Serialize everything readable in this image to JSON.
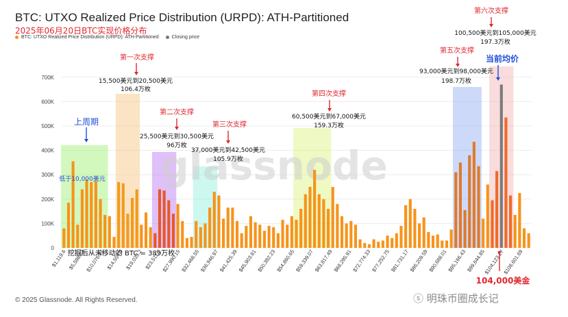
{
  "header": {
    "title": "BTC: UTXO Realized Price Distribution (URPD): ATH-Partitioned",
    "subtitle": "2025年06月20日BTC实现价格分布",
    "legend": [
      {
        "label": "BTC: UTXO Realized Price Distribution (URPD): ATH-Partitioned",
        "color": "#f7931a"
      },
      {
        "label": "Closing price",
        "color": "#777777"
      }
    ]
  },
  "footer": {
    "copyright": "© 2025 Glassnode. All Rights Reserved.",
    "credit": "明珠币圈成长记"
  },
  "watermark": "glassnode",
  "chart_data": {
    "type": "bar",
    "y_ticks": [
      "0",
      "100K",
      "200K",
      "300K",
      "400K",
      "500K",
      "600K",
      "700K"
    ],
    "ylim": [
      0,
      750000
    ],
    "x_tick_labels": [
      "$1,119.6",
      "$5,598.03",
      "$10,076.47",
      "$14,554.9",
      "$19,033.2",
      "$23,511.7",
      "$27,990.15",
      "$32,468.55",
      "$36,946.97",
      "$41,425.39",
      "$45,903.81",
      "$50,382.23",
      "$54,860.65",
      "$59,339.07",
      "$63,817.49",
      "$68,295.91",
      "$72,774.33",
      "$77,252.75",
      "$81,731.17",
      "$86,209.59",
      "$90,688.01",
      "$95,166.43",
      "$99,644.85",
      "$104,123.27",
      "$108,601.69"
    ],
    "values": [
      80000,
      185000,
      355000,
      95000,
      240000,
      280000,
      270000,
      275000,
      200000,
      135000,
      130000,
      45000,
      270000,
      265000,
      140000,
      205000,
      240000,
      95000,
      145000,
      85000,
      60000,
      240000,
      235000,
      195000,
      140000,
      180000,
      110000,
      40000,
      45000,
      110000,
      85000,
      100000,
      165000,
      230000,
      215000,
      120000,
      165000,
      165000,
      110000,
      60000,
      90000,
      130000,
      105000,
      95000,
      70000,
      90000,
      85000,
      60000,
      115000,
      95000,
      130000,
      115000,
      160000,
      220000,
      250000,
      320000,
      220000,
      200000,
      160000,
      250000,
      180000,
      130000,
      100000,
      110000,
      95000,
      35000,
      20000,
      15000,
      35000,
      25000,
      30000,
      50000,
      40000,
      60000,
      90000,
      175000,
      200000,
      160000,
      100000,
      125000,
      65000,
      50000,
      55000,
      30000,
      30000,
      75000,
      310000,
      350000,
      155000,
      380000,
      435000,
      335000,
      120000,
      260000,
      195000,
      315000,
      670000,
      535000,
      215000,
      135000,
      225000,
      80000,
      60000
    ],
    "closing_price_index": 96,
    "series": [
      {
        "name": "BTC: UTXO Realized Price Distribution (URPD): ATH-Partitioned",
        "color": "#f7931a"
      },
      {
        "name": "Closing price",
        "color": "#777777"
      }
    ],
    "zones": [
      {
        "name": "上周期",
        "from": 0,
        "to": 9,
        "color": "#9bf06e"
      },
      {
        "name": "第一次支撑",
        "from": 12,
        "to": 16,
        "color": "#f5c37a"
      },
      {
        "name": "第二次支撑",
        "from": 20,
        "to": 24,
        "color": "#b873f0"
      },
      {
        "name": "第三次支撑",
        "from": 29,
        "to": 33,
        "color": "#8ff0dc"
      },
      {
        "name": "第四次支撑",
        "from": 51,
        "to": 58,
        "color": "#d9f27a"
      },
      {
        "name": "第五次支撑",
        "from": 86,
        "to": 91,
        "color": "#8eaaf2"
      },
      {
        "name": "第六次支撑",
        "from": 94,
        "to": 98,
        "color": "#f5b1b1"
      }
    ],
    "annotations": [
      {
        "text": "上周期",
        "color": "#1f4fd6",
        "kind": "blue"
      },
      {
        "text": "低于10,000美元",
        "color": "#1f4fd6",
        "kind": "blue"
      },
      {
        "text": "第一次支撑",
        "color": "#e0282f",
        "kind": "red"
      },
      {
        "text": "15,500美元到20,500美元",
        "color": "#111111",
        "kind": "plain"
      },
      {
        "text": "106.4万枚",
        "color": "#111111",
        "kind": "plain"
      },
      {
        "text": "第二次支撑",
        "color": "#e0282f",
        "kind": "red"
      },
      {
        "text": "25,500美元到30,500美元",
        "color": "#111111",
        "kind": "plain"
      },
      {
        "text": "96万枚",
        "color": "#111111",
        "kind": "plain"
      },
      {
        "text": "第三次支撑",
        "color": "#e0282f",
        "kind": "red"
      },
      {
        "text": "37,000美元到42,500美元",
        "color": "#111111",
        "kind": "plain"
      },
      {
        "text": "105.9万枚",
        "color": "#111111",
        "kind": "plain"
      },
      {
        "text": "第四次支撑",
        "color": "#e0282f",
        "kind": "red"
      },
      {
        "text": "60,500美元到67,000美元",
        "color": "#111111",
        "kind": "plain"
      },
      {
        "text": "159.3万枚",
        "color": "#111111",
        "kind": "plain"
      },
      {
        "text": "第五次支撑",
        "color": "#e0282f",
        "kind": "red"
      },
      {
        "text": "93,000美元到98,000美元",
        "color": "#111111",
        "kind": "plain"
      },
      {
        "text": "198.7万枚",
        "color": "#111111",
        "kind": "plain"
      },
      {
        "text": "第六次支撑",
        "color": "#e0282f",
        "kind": "red"
      },
      {
        "text": "100,500美元到105,000美元",
        "color": "#111111",
        "kind": "plain"
      },
      {
        "text": "197.3万枚",
        "color": "#111111",
        "kind": "plain"
      },
      {
        "text": "当前均价",
        "color": "#1f4fd6",
        "kind": "blue"
      },
      {
        "text": "104,000美金",
        "color": "#e0282f",
        "kind": "red"
      },
      {
        "text": "挖掘后从未移动的 BTC = 389万枚",
        "color": "#111111",
        "kind": "plain"
      }
    ]
  }
}
